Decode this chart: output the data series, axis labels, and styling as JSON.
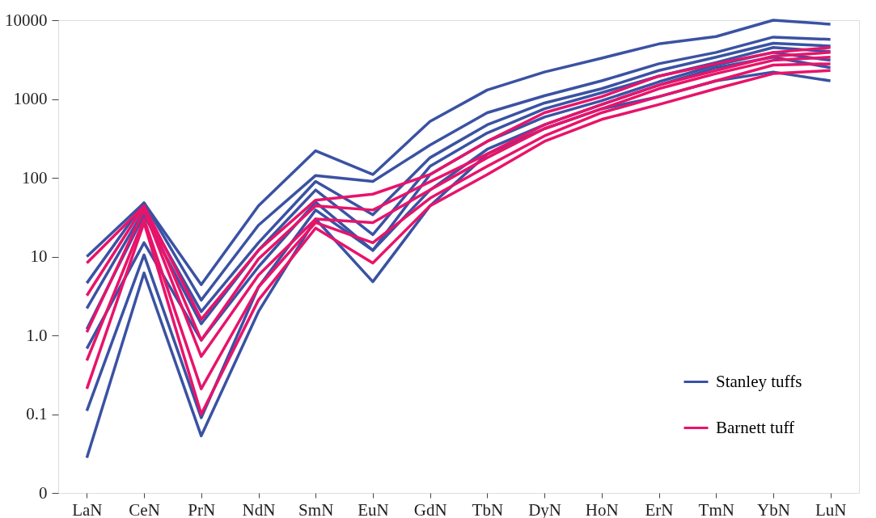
{
  "chart_data": {
    "type": "line",
    "categories": [
      "LaN",
      "CeN",
      "PrN",
      "NdN",
      "SmN",
      "EuN",
      "GdN",
      "TbN",
      "DyN",
      "HoN",
      "ErN",
      "TmN",
      "YbN",
      "LuN"
    ],
    "log": "y",
    "ylim": [
      0.01,
      10000
    ],
    "yticks": [
      {
        "value": 0.01,
        "label": "0"
      },
      0.1,
      {
        "value": 1,
        "label": "1.0"
      },
      10,
      100,
      1000,
      10000
    ],
    "grid": false,
    "legend": "bottom right",
    "line_style": "solid",
    "marker": "none",
    "series": [
      {
        "name": "Stanley tuffs",
        "color": "#3a52a3",
        "values": [
          10,
          48,
          4.4,
          44,
          220,
          110,
          520,
          1300,
          2200,
          3300,
          5000,
          6200,
          10000,
          8900
        ]
      },
      {
        "color": "#3a52a3",
        "values": [
          4.6,
          48,
          2.8,
          25,
          107,
          90,
          260,
          670,
          1100,
          1700,
          2800,
          3900,
          6100,
          5700
        ]
      },
      {
        "color": "#3a52a3",
        "values": [
          2.2,
          39,
          2.0,
          15,
          90,
          34,
          180,
          470,
          890,
          1350,
          2300,
          3400,
          5100,
          4700
        ]
      },
      {
        "color": "#3a52a3",
        "values": [
          1.2,
          34,
          1.4,
          12,
          70,
          19,
          140,
          370,
          750,
          1200,
          1950,
          2900,
          4500,
          4000
        ]
      },
      {
        "color": "#3a52a3",
        "values": [
          0.68,
          15,
          0.87,
          7.4,
          49,
          12,
          110,
          290,
          590,
          950,
          1650,
          2700,
          3900,
          3100
        ]
      },
      {
        "color": "#3a52a3",
        "values": [
          0.11,
          10.5,
          0.09,
          4.1,
          39,
          12,
          70,
          230,
          470,
          850,
          1500,
          2500,
          3400,
          2500
        ]
      },
      {
        "color": "#3a52a3",
        "values": [
          0.028,
          6.2,
          0.053,
          2.0,
          30,
          4.8,
          44,
          200,
          420,
          750,
          1070,
          1700,
          2200,
          1700
        ]
      },
      {
        "name": "Barnett tuff",
        "color": "#e8136a",
        "values": [
          8.3,
          44,
          1.6,
          12,
          52,
          62,
          110,
          290,
          670,
          1070,
          1950,
          2800,
          3900,
          4500
        ]
      },
      {
        "color": "#e8136a",
        "values": [
          3.2,
          44,
          0.87,
          9.3,
          44,
          39,
          89,
          200,
          470,
          850,
          1500,
          2300,
          3500,
          3900
        ]
      },
      {
        "color": "#e8136a",
        "values": [
          1.1,
          39,
          0.54,
          5.8,
          30,
          27,
          70,
          180,
          420,
          750,
          1350,
          2100,
          3100,
          3400
        ]
      },
      {
        "color": "#e8136a",
        "values": [
          0.48,
          30,
          0.21,
          4.1,
          27,
          15,
          55,
          140,
          340,
          670,
          1070,
          1700,
          2700,
          2800
        ]
      },
      {
        "color": "#e8136a",
        "values": [
          0.21,
          27,
          0.1,
          2.8,
          23,
          8.3,
          44,
          110,
          290,
          550,
          850,
          1350,
          2100,
          2300
        ]
      }
    ]
  }
}
